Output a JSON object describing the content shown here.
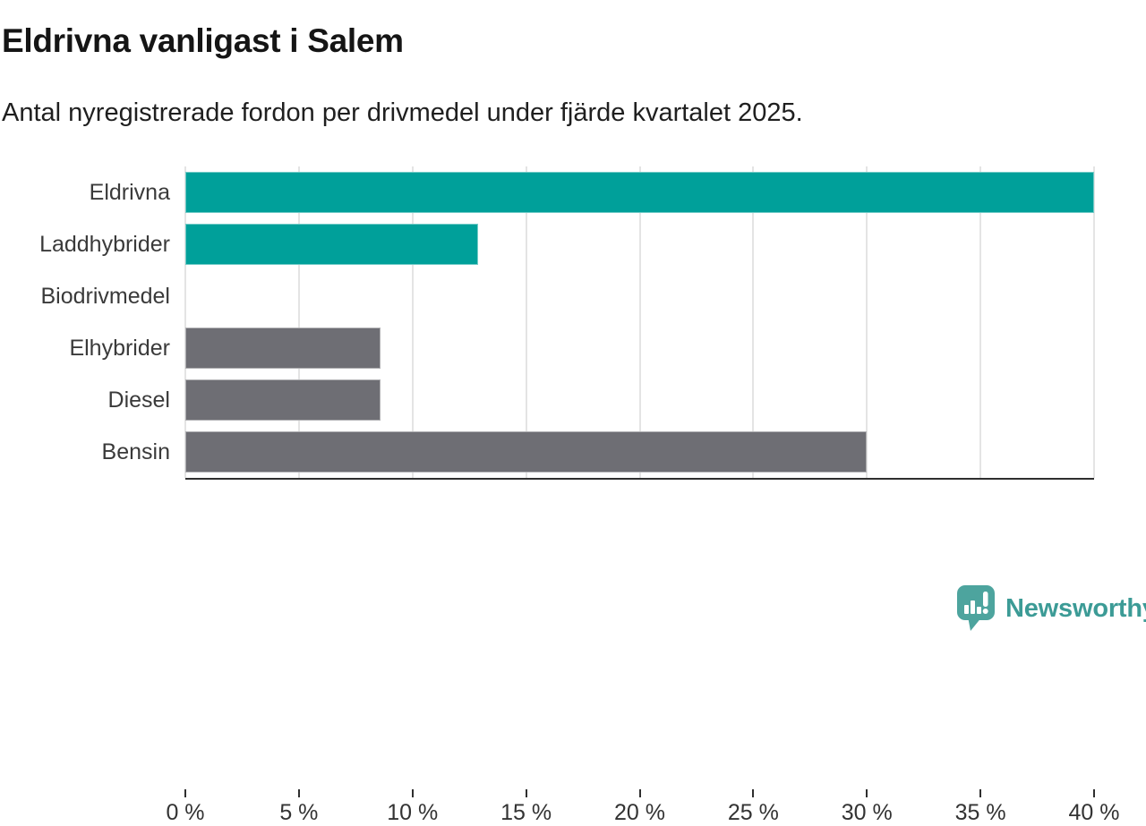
{
  "chart_data": {
    "type": "bar",
    "orientation": "horizontal",
    "title": "Eldrivna vanligast i Salem",
    "subtitle": "Antal nyregistrerade fordon per drivmedel under fjärde kvartalet 2025.",
    "categories": [
      "Eldrivna",
      "Laddhybrider",
      "Biodrivmedel",
      "Elhybrider",
      "Diesel",
      "Bensin"
    ],
    "values": [
      40,
      12.9,
      0,
      8.6,
      8.6,
      30
    ],
    "value_unit": "%",
    "xlim": [
      0,
      40
    ],
    "x_tick_step": 5,
    "x_tick_labels": [
      "0 %",
      "5 %",
      "10 %",
      "15 %",
      "20 %",
      "25 %",
      "30 %",
      "35 %",
      "40 %"
    ],
    "grid": true,
    "legend": false,
    "bar_colors": [
      "#00a09a",
      "#00a09a",
      "#6e6e74",
      "#6e6e74",
      "#6e6e74",
      "#6e6e74"
    ],
    "accent_color": "#00a09a",
    "default_bar_color": "#6e6e74"
  },
  "branding": {
    "label": "Newsworthy",
    "color": "#3c9b96",
    "icon_color": "#4da49e",
    "icon": "newsworthy-speech-bubble-chart-icon"
  }
}
